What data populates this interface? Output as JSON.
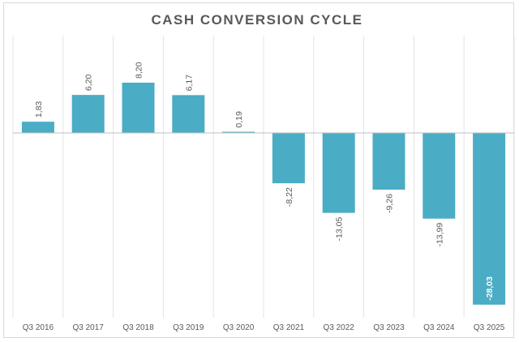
{
  "chart_data": {
    "type": "bar",
    "title": "CASH CONVERSION CYCLE",
    "categories": [
      "Q3 2016",
      "Q3 2017",
      "Q3 2018",
      "Q3 2019",
      "Q3 2020",
      "Q3 2021",
      "Q3 2022",
      "Q3 2023",
      "Q3 2024",
      "Q3 2025"
    ],
    "values": [
      1.83,
      6.2,
      8.2,
      6.17,
      0.19,
      -8.22,
      -13.05,
      -9.26,
      -13.99,
      -28.03
    ],
    "data_labels": [
      "1,83",
      "6,20",
      "8,20",
      "6,17",
      "0,19",
      "-8,22",
      "-13,05",
      "-9,26",
      "-13,99",
      "-28,03"
    ],
    "ylim": [
      -28.03,
      13
    ],
    "xlabel": "",
    "ylabel": "",
    "grid": "vertical",
    "legend": "none",
    "bar_color": "#4bacc6"
  }
}
